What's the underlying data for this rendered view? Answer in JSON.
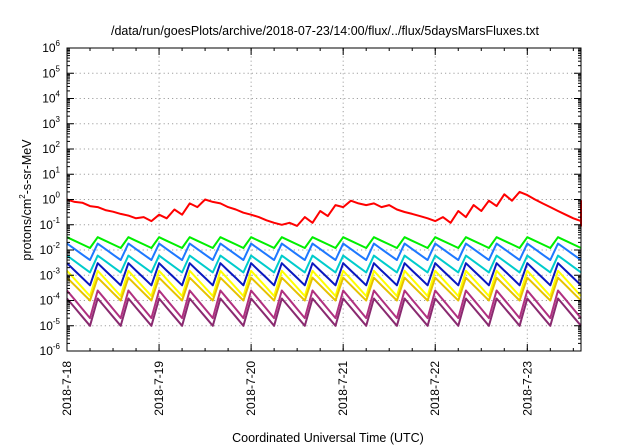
{
  "chart_data": {
    "type": "line",
    "title": "/data/run/goesPlots/archive/2018-07-23/14:00/flux/../flux/5daysMarsFluxes.txt",
    "xlabel": "Coordinated Universal Time (UTC)",
    "ylabel": {
      "prefix": "protons/cm",
      "sup": "2",
      "suffix": "-s-sr-MeV"
    },
    "yscale": "log",
    "ylim_exp": [
      -6,
      6
    ],
    "y_ticks": [
      {
        "base": "10",
        "exp": "-6"
      },
      {
        "base": "10",
        "exp": "-5"
      },
      {
        "base": "10",
        "exp": "-4"
      },
      {
        "base": "10",
        "exp": "-3"
      },
      {
        "base": "10",
        "exp": "-2"
      },
      {
        "base": "10",
        "exp": "-1"
      },
      {
        "base": "10",
        "exp": "0"
      },
      {
        "base": "10",
        "exp": "1"
      },
      {
        "base": "10",
        "exp": "2"
      },
      {
        "base": "10",
        "exp": "3"
      },
      {
        "base": "10",
        "exp": "4"
      },
      {
        "base": "10",
        "exp": "5"
      },
      {
        "base": "10",
        "exp": "6"
      }
    ],
    "x_ticks": [
      "2018-7-18",
      "2018-7-19",
      "2018-7-20",
      "2018-7-21",
      "2018-7-22",
      "2018-7-23"
    ],
    "xlim": [
      "2018-07-18T00:00",
      "2018-07-23T14:00"
    ],
    "grid": true,
    "x_step_hours": 2,
    "series": [
      {
        "color": "#ff0000",
        "values": [
          1.0,
          0.8,
          0.75,
          0.55,
          0.5,
          0.38,
          0.33,
          0.27,
          0.23,
          0.18,
          0.2,
          0.14,
          0.25,
          0.18,
          0.4,
          0.25,
          0.7,
          0.5,
          1.0,
          0.8,
          0.7,
          0.5,
          0.4,
          0.3,
          0.25,
          0.2,
          0.15,
          0.12,
          0.1,
          0.12,
          0.09,
          0.2,
          0.12,
          0.35,
          0.22,
          0.6,
          0.5,
          0.9,
          0.7,
          0.6,
          0.7,
          0.5,
          0.6,
          0.4,
          0.32,
          0.27,
          0.22,
          0.18,
          0.14,
          0.2,
          0.12,
          0.35,
          0.2,
          0.6,
          0.35,
          0.9,
          0.55,
          1.6,
          0.9,
          2.0,
          1.5,
          1.0,
          0.7,
          0.5,
          0.35,
          0.25,
          0.18,
          0.14,
          0.12,
          0.1,
          0.12,
          0.09,
          0.15,
          0.1,
          0.25,
          0.15,
          0.4,
          0.25,
          0.6,
          0.4,
          0.9,
          0.6,
          0.8,
          0.5,
          0.45,
          0.35,
          0.25,
          0.2,
          0.15,
          0.12,
          0.1,
          0.13,
          0.09,
          0.2,
          0.12,
          0.35,
          0.22,
          0.6,
          0.4,
          0.8,
          0.6,
          0.7,
          0.5,
          0.55,
          0.4,
          0.42,
          0.32,
          0.3,
          0.25,
          0.22,
          0.2,
          0.18,
          0.16,
          0.18,
          0.15,
          0.15,
          0.13,
          0.14,
          0.12,
          0.14,
          0.12,
          0.13,
          0.11,
          0.12
        ]
      },
      {
        "color": "#00ee00",
        "saw": {
          "hi": 0.032,
          "lo": 0.012
        }
      },
      {
        "color": "#1e78ff",
        "saw": {
          "hi": 0.018,
          "lo": 0.004
        }
      },
      {
        "color": "#00cccc",
        "saw": {
          "hi": 0.006,
          "lo": 0.0013
        }
      },
      {
        "color": "#0a18c0",
        "saw": {
          "hi": 0.003,
          "lo": 0.0004
        }
      },
      {
        "color": "#ffff00",
        "saw": {
          "hi": 0.0015,
          "lo": 0.00015
        }
      },
      {
        "color": "#e6c200",
        "saw": {
          "hi": 0.0008,
          "lo": 0.0001
        }
      },
      {
        "color": "#b03080",
        "saw": {
          "hi": 0.00025,
          "lo": 2e-05
        }
      },
      {
        "color": "#8a2a70",
        "saw": {
          "hi": 0.00012,
          "lo": 1e-05
        }
      }
    ]
  }
}
